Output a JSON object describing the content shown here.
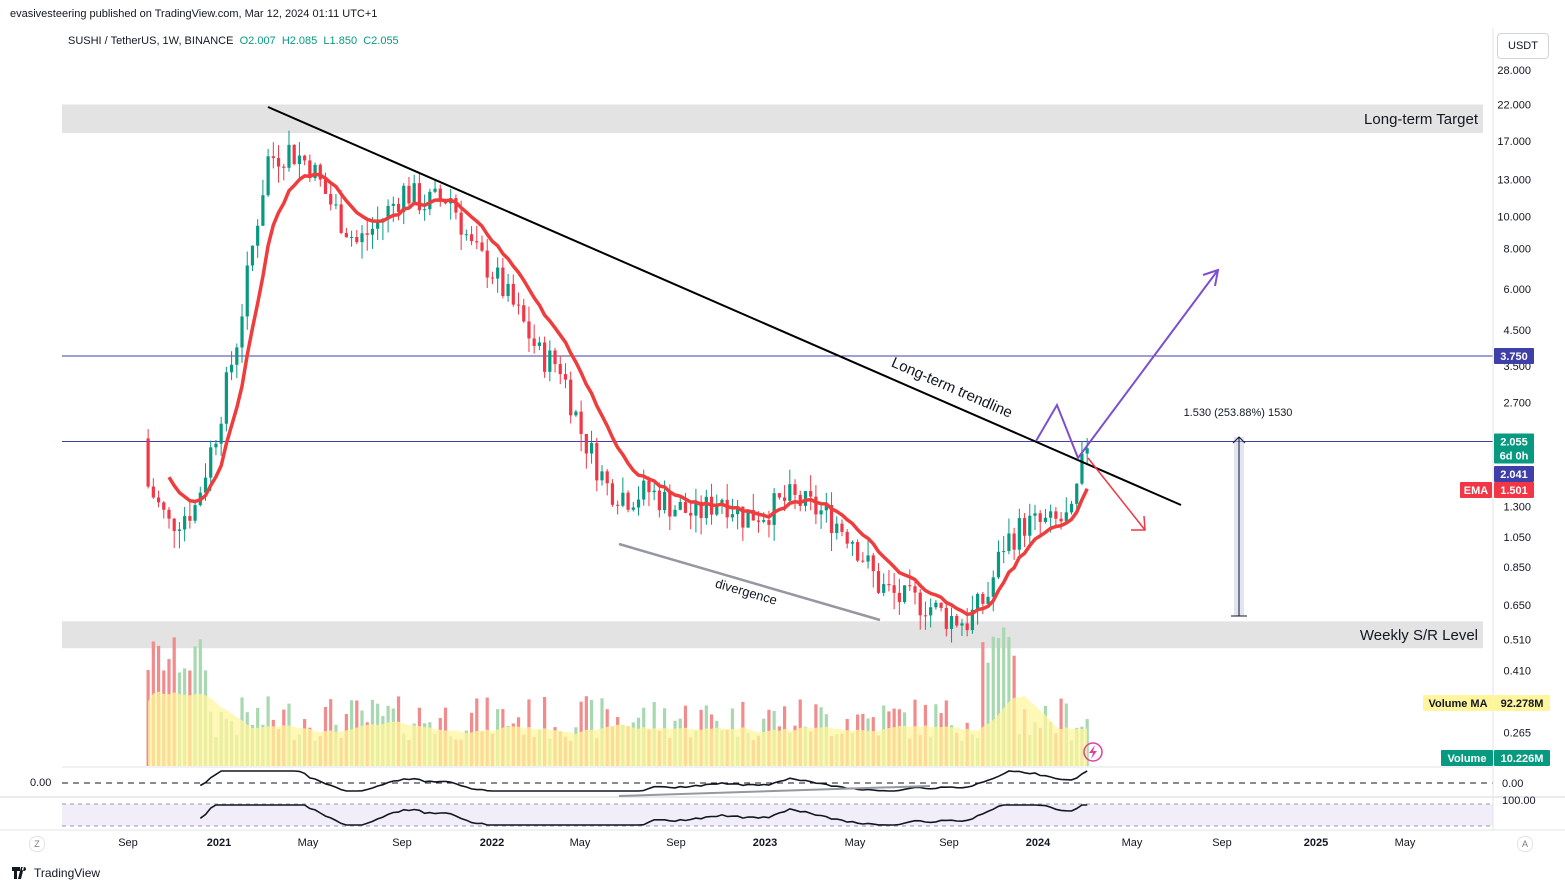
{
  "header": {
    "published_by": "evasivesteering published on TradingView.com, Mar 12, 2024 01:11 UTC+1",
    "symbol": "SUSHI / TetherUS, 1W, BINANCE",
    "ohlc": [
      "O2.007",
      "H2.085",
      "L1.850",
      "C2.055"
    ]
  },
  "currency_button": "USDT",
  "footer": {
    "brand": "TradingView",
    "z_button": "Z",
    "a_button": "A"
  },
  "colors": {
    "up": "#089981",
    "down": "#f23645",
    "ema": "#ef3d3d",
    "trendline": "#000000",
    "level_line": "#3f3fa8",
    "target_arrow": "#7b4fd0",
    "zone": "#e0e0e0",
    "vol_up": "#a8d8b0",
    "vol_down": "#f28b8b",
    "vol_ma": "#fff59d"
  },
  "chart_data": {
    "type": "candlestick",
    "scale": "log",
    "ylim": [
      0.2,
      30
    ],
    "y_ticks": [
      "28.000",
      "22.000",
      "17.000",
      "13.000",
      "10.000",
      "8.000",
      "6.000",
      "4.500",
      "3.500",
      "2.700",
      "1.300",
      "1.050",
      "0.850",
      "0.650",
      "0.510",
      "0.410",
      "0.265"
    ],
    "x_ticks": [
      "Sep",
      "2021",
      "May",
      "Sep",
      "2022",
      "May",
      "Sep",
      "2023",
      "May",
      "Sep",
      "2024",
      "May",
      "Sep",
      "2025",
      "May"
    ],
    "indicators": {
      "ema_label": "EMA",
      "ema_value": "1.501",
      "volume_ma_label": "Volume MA",
      "volume_ma_value": "92.278M",
      "volume_label": "Volume",
      "volume_value": "10.226M"
    },
    "price_labels": {
      "level": "3.750",
      "last": "2.055",
      "countdown": "6d 0h",
      "ema_mark": "2.041"
    },
    "zones": [
      {
        "label": "Long-term Target",
        "range": [
          18,
          22
        ]
      },
      {
        "label": "Weekly S/R Level",
        "range": [
          0.48,
          0.58
        ]
      }
    ],
    "annotations": {
      "trendline": "Long-term trendline",
      "divergence": "divergence",
      "measure": "1.530 (253.88%) 1530"
    },
    "osc1": {
      "zero_label": "0.00",
      "right_label": "0.00"
    },
    "osc2": {
      "right_label": "100.00"
    },
    "close_path": [
      [
        "2020-09-28",
        1.5
      ],
      [
        "2020-10-26",
        1.15
      ],
      [
        "2020-11-30",
        1.3
      ],
      [
        "2020-12-28",
        2.2
      ],
      [
        "2021-01-25",
        4.2
      ],
      [
        "2021-02-22",
        10
      ],
      [
        "2021-03-08",
        15
      ],
      [
        "2021-04-05",
        16
      ],
      [
        "2021-05-03",
        14.5
      ],
      [
        "2021-05-31",
        11
      ],
      [
        "2021-07-05",
        8.3
      ],
      [
        "2021-08-02",
        9.5
      ],
      [
        "2021-09-06",
        12
      ],
      [
        "2021-10-04",
        11
      ],
      [
        "2021-11-08",
        11.5
      ],
      [
        "2021-12-06",
        8
      ],
      [
        "2022-01-03",
        6.8
      ],
      [
        "2022-02-07",
        5
      ],
      [
        "2022-03-07",
        3.8
      ],
      [
        "2022-04-04",
        3.5
      ],
      [
        "2022-05-02",
        2.2
      ],
      [
        "2022-06-06",
        1.5
      ],
      [
        "2022-07-04",
        1.4
      ],
      [
        "2022-08-01",
        1.45
      ],
      [
        "2022-09-05",
        1.3
      ],
      [
        "2022-10-03",
        1.22
      ],
      [
        "2022-11-07",
        1.4
      ],
      [
        "2022-12-05",
        1.22
      ],
      [
        "2023-01-02",
        1.25
      ],
      [
        "2023-02-06",
        1.38
      ],
      [
        "2023-03-06",
        1.3
      ],
      [
        "2023-04-03",
        1.2
      ],
      [
        "2023-05-01",
        1.05
      ],
      [
        "2023-06-05",
        0.75
      ],
      [
        "2023-07-03",
        0.68
      ],
      [
        "2023-08-07",
        0.66
      ],
      [
        "2023-09-04",
        0.6
      ],
      [
        "2023-10-02",
        0.58
      ],
      [
        "2023-10-30",
        0.7
      ],
      [
        "2023-11-20",
        1.0
      ],
      [
        "2023-12-18",
        1.15
      ],
      [
        "2024-01-22",
        1.15
      ],
      [
        "2024-02-19",
        1.2
      ],
      [
        "2024-03-11",
        2.055
      ]
    ]
  }
}
